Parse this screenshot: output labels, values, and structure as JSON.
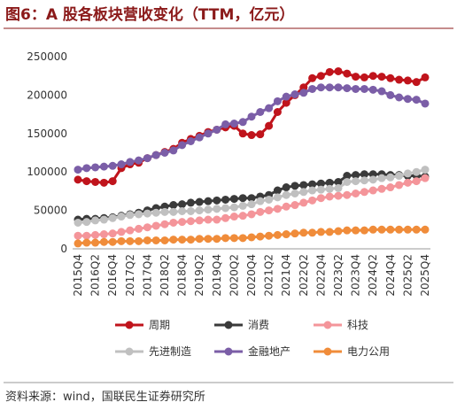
{
  "title": "图6：A 股各板块营收变化（TTM，亿元）",
  "source": "资料来源：wind，国联民生证券研究所",
  "chart_data": {
    "type": "line",
    "categories": [
      "2015Q4",
      null,
      "2016Q2",
      null,
      "2016Q4",
      null,
      "2017Q2",
      null,
      "2017Q4",
      null,
      "2018Q2",
      null,
      "2018Q4",
      null,
      "2019Q2",
      null,
      "2019Q4",
      null,
      "2020Q2",
      null,
      "2020Q4",
      null,
      "2021Q2",
      null,
      "2021Q4",
      null,
      "2022Q2",
      null,
      "2022Q4",
      null,
      "2023Q2",
      null,
      "2023Q4",
      null,
      "2024Q2",
      null,
      "2024Q4",
      null,
      "2025Q2",
      null,
      "2025Q4"
    ],
    "ylim": [
      0,
      250000
    ],
    "yticks": [
      0,
      50000,
      100000,
      150000,
      200000,
      250000
    ],
    "grid": false,
    "legend": "bottom",
    "series": [
      {
        "name": "周期",
        "color": "#c0141c",
        "values": [
          90000,
          88000,
          87000,
          86000,
          88000,
          105000,
          110000,
          112000,
          118000,
          122000,
          126000,
          130000,
          138000,
          143000,
          147000,
          152000,
          155000,
          158000,
          160000,
          150000,
          148000,
          149000,
          160000,
          178000,
          190000,
          200000,
          210000,
          222000,
          225000,
          230000,
          231000,
          228000,
          224000,
          223000,
          225000,
          224000,
          222000,
          220000,
          219000,
          217000,
          223000
        ]
      },
      {
        "name": "消费",
        "color": "#3a3a3a",
        "values": [
          38000,
          39000,
          39000,
          40000,
          41000,
          43000,
          45000,
          47000,
          50000,
          53000,
          55000,
          57000,
          58000,
          60000,
          61000,
          62000,
          63000,
          64000,
          65000,
          66000,
          66000,
          68000,
          70000,
          76000,
          80000,
          82000,
          83000,
          84000,
          85000,
          86000,
          87000,
          95000,
          96000,
          97000,
          97000,
          97000,
          96000,
          96000,
          95000,
          95000,
          94000
        ]
      },
      {
        "name": "科技",
        "color": "#f4959a",
        "values": [
          17000,
          17000,
          18000,
          19000,
          20000,
          22000,
          24000,
          26000,
          28000,
          30000,
          32000,
          34000,
          35000,
          36000,
          37000,
          38000,
          38000,
          40000,
          42000,
          43000,
          45000,
          48000,
          50000,
          52000,
          55000,
          57000,
          60000,
          63000,
          66000,
          68000,
          69000,
          70000,
          72000,
          74000,
          76000,
          78000,
          80000,
          83000,
          86000,
          88000,
          92000
        ]
      },
      {
        "name": "先进制造",
        "color": "#c0c0c0",
        "values": [
          34000,
          35000,
          37000,
          38000,
          40000,
          42000,
          44000,
          45000,
          46000,
          47000,
          48000,
          48000,
          49000,
          49000,
          50000,
          51000,
          52000,
          53000,
          54000,
          56000,
          58000,
          62000,
          64000,
          67000,
          70000,
          72000,
          74000,
          76000,
          77000,
          78000,
          79000,
          87000,
          88000,
          89000,
          90000,
          92000,
          93000,
          95000,
          98000,
          100000,
          103000
        ]
      },
      {
        "name": "金融地产",
        "color": "#7b5ea7",
        "values": [
          103000,
          105000,
          106000,
          107000,
          108000,
          110000,
          113000,
          115000,
          118000,
          122000,
          125000,
          128000,
          135000,
          140000,
          145000,
          150000,
          155000,
          162000,
          163000,
          165000,
          172000,
          178000,
          183000,
          192000,
          198000,
          201000,
          203000,
          208000,
          210000,
          210000,
          210000,
          209000,
          208000,
          208000,
          207000,
          205000,
          200000,
          197000,
          195000,
          194000,
          189000
        ]
      },
      {
        "name": "电力公用",
        "color": "#f08c3a",
        "values": [
          7000,
          8000,
          8000,
          9000,
          9000,
          10000,
          10000,
          10000,
          11000,
          11000,
          11000,
          12000,
          12000,
          12000,
          13000,
          13000,
          13000,
          14000,
          14000,
          14000,
          15000,
          16000,
          17000,
          18000,
          19000,
          20000,
          21000,
          21000,
          22000,
          22000,
          23000,
          24000,
          24000,
          24000,
          25000,
          25000,
          25000,
          25000,
          25000,
          25000,
          25000
        ]
      }
    ]
  }
}
